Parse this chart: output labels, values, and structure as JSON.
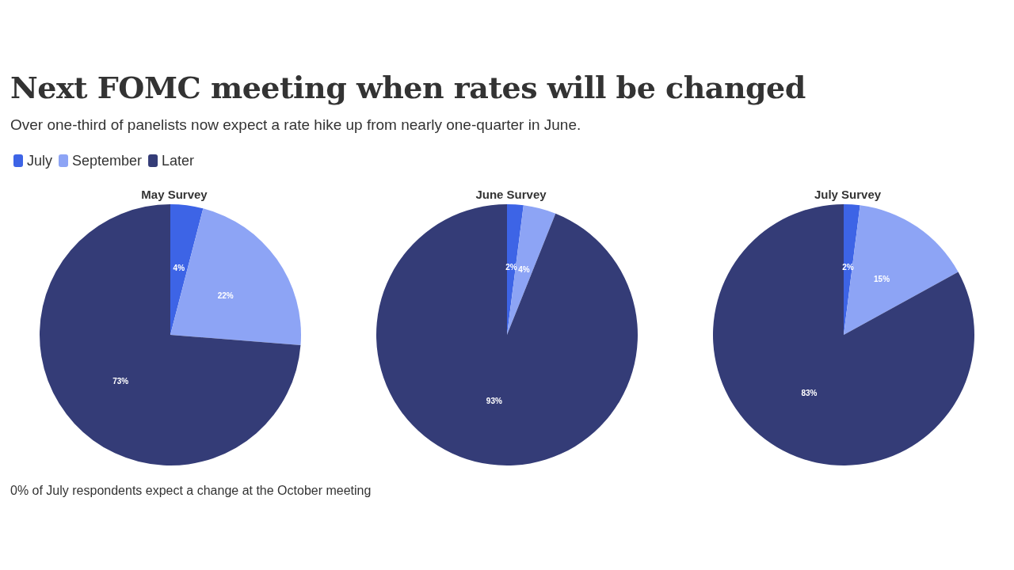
{
  "chart_data": [
    {
      "type": "pie",
      "title": "May Survey",
      "categories": [
        "July",
        "September",
        "Later"
      ],
      "values": [
        4,
        22,
        73
      ],
      "colors": [
        "#3d64e6",
        "#8da4f5",
        "#343c77"
      ],
      "value_labels": [
        "4%",
        "22%",
        "73%"
      ],
      "legend": "top left",
      "annotations": [
        "Next FOMC meeting when rates will be changed",
        "Over one-third of panelists now expect a rate hike up from nearly one-quarter in June."
      ]
    },
    {
      "type": "pie",
      "title": "June Survey",
      "categories": [
        null,
        null,
        null
      ],
      "values": [
        2,
        4,
        93
      ],
      "colors": [
        "#3d64e6",
        "#8da4f5",
        "#343c77"
      ],
      "value_labels": [
        "2%",
        "4%",
        "93%"
      ]
    },
    {
      "type": "pie",
      "title": "July Survey",
      "categories": [
        null,
        null,
        null
      ],
      "values": [
        2,
        15,
        83
      ],
      "colors": [
        "#3d64e6",
        "#8da4f5",
        "#343c77"
      ],
      "value_labels": [
        "2%",
        "15%",
        "83%"
      ],
      "annotations": [
        "0% of July respondents expect a change at the October meeting"
      ]
    }
  ]
}
